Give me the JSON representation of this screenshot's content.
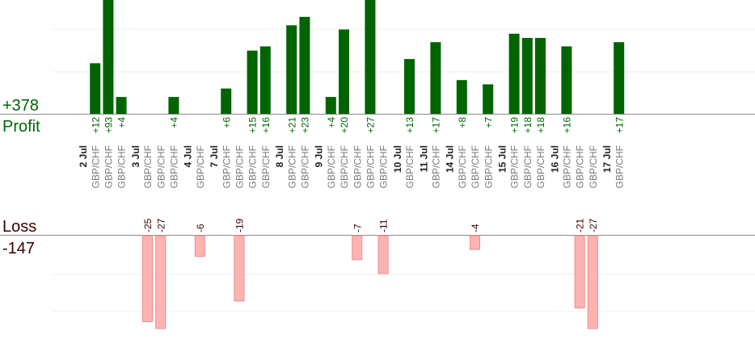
{
  "chart_data": {
    "type": "bar",
    "profit": {
      "label": "Profit",
      "total": "+378",
      "color": "#006400",
      "ylim": [
        0,
        27
      ]
    },
    "loss": {
      "label": "Loss",
      "total": "-147",
      "color": "#ffb3b3",
      "border_color": "#f08a8a",
      "ylim": [
        0,
        27
      ]
    },
    "dates": [
      {
        "label": "2 Jul",
        "trades": [
          {
            "pair": "GBP/CHF",
            "value": 12
          },
          {
            "pair": "GBP/CHF",
            "value": 93
          },
          {
            "pair": "GBP/CHF",
            "value": 4
          }
        ]
      },
      {
        "label": "3 Jul",
        "trades": [
          {
            "pair": "GBP/CHF",
            "value": -25
          },
          {
            "pair": "GBP/CHF",
            "value": -27
          },
          {
            "pair": "GBP/CHF",
            "value": 4
          }
        ]
      },
      {
        "label": "4 Jul",
        "trades": [
          {
            "pair": "GBP/CHF",
            "value": -6
          }
        ]
      },
      {
        "label": "7 Jul",
        "trades": [
          {
            "pair": "GBP/CHF",
            "value": 6
          },
          {
            "pair": "GBP/CHF",
            "value": -19
          },
          {
            "pair": "GBP/CHF",
            "value": 15
          },
          {
            "pair": "GBP/CHF",
            "value": 16
          }
        ]
      },
      {
        "label": "8 Jul",
        "trades": [
          {
            "pair": "GBP/CHF",
            "value": 21
          },
          {
            "pair": "GBP/CHF",
            "value": 23
          }
        ]
      },
      {
        "label": "9 Jul",
        "trades": [
          {
            "pair": "GBP/CHF",
            "value": 4
          },
          {
            "pair": "GBP/CHF",
            "value": 20
          },
          {
            "pair": "GBP/CHF",
            "value": -7
          },
          {
            "pair": "GBP/CHF",
            "value": 27
          },
          {
            "pair": "GBP/CHF",
            "value": -11
          }
        ]
      },
      {
        "label": "10 Jul",
        "trades": [
          {
            "pair": "GBP/CHF",
            "value": 13
          }
        ]
      },
      {
        "label": "11 Jul",
        "trades": [
          {
            "pair": "GBP/CHF",
            "value": 17
          }
        ]
      },
      {
        "label": "14 Jul",
        "trades": [
          {
            "pair": "GBP/CHF",
            "value": 8
          },
          {
            "pair": "GBP/CHF",
            "value": -4
          },
          {
            "pair": "GBP/CHF",
            "value": 7
          }
        ]
      },
      {
        "label": "15 Jul",
        "trades": [
          {
            "pair": "GBP/CHF",
            "value": 19
          },
          {
            "pair": "GBP/CHF",
            "value": 18
          },
          {
            "pair": "GBP/CHF",
            "value": 18
          }
        ]
      },
      {
        "label": "16 Jul",
        "trades": [
          {
            "pair": "GBP/CHF",
            "value": 16
          },
          {
            "pair": "GBP/CHF",
            "value": -21
          },
          {
            "pair": "GBP/CHF",
            "value": -27
          }
        ]
      },
      {
        "label": "17 Jul",
        "trades": [
          {
            "pair": "GBP/CHF",
            "value": 17
          }
        ]
      }
    ]
  }
}
